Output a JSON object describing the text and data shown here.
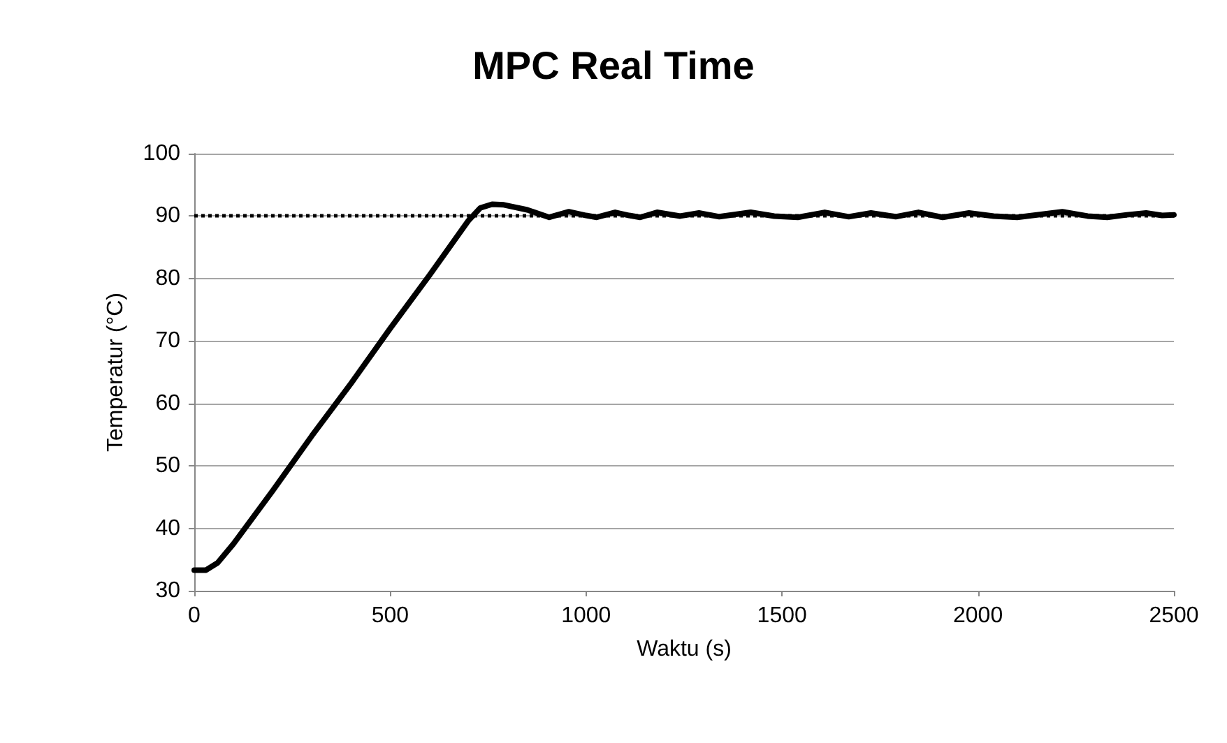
{
  "chart_data": {
    "type": "line",
    "title": "MPC Real Time",
    "xlabel": "Waktu (s)",
    "ylabel": "Temperatur (°C)",
    "xlim": [
      0,
      2500
    ],
    "xticks": [
      0,
      500,
      1000,
      1500,
      2000,
      2500
    ],
    "ylim": [
      30,
      100
    ],
    "yticks": [
      30,
      40,
      50,
      60,
      70,
      80,
      90,
      100
    ],
    "grid": "y",
    "marker": "none",
    "line_style": "solid",
    "ref_lines": [
      {
        "axis": "y",
        "value": 90,
        "color": "#000000",
        "line_style": "dotted"
      }
    ],
    "series": [
      {
        "color": "#000000",
        "x": [
          0,
          30,
          60,
          100,
          200,
          300,
          400,
          500,
          600,
          700,
          730,
          760,
          790,
          850,
          906,
          956,
          1000,
          1027,
          1074,
          1110,
          1138,
          1181,
          1240,
          1288,
          1340,
          1420,
          1480,
          1540,
          1609,
          1670,
          1727,
          1790,
          1848,
          1910,
          1977,
          2040,
          2100,
          2215,
          2280,
          2330,
          2380,
          2429,
          2470,
          2500
        ],
        "values": [
          33.3,
          33.3,
          34.5,
          37.5,
          46,
          54.8,
          63.2,
          72,
          80.5,
          89.3,
          91.3,
          91.9,
          91.8,
          91,
          89.8,
          90.7,
          90.1,
          89.8,
          90.6,
          90.1,
          89.8,
          90.6,
          90,
          90.5,
          89.9,
          90.6,
          90,
          89.8,
          90.6,
          89.9,
          90.5,
          89.9,
          90.6,
          89.8,
          90.5,
          90,
          89.8,
          90.7,
          90,
          89.8,
          90.2,
          90.5,
          90.1,
          90.2
        ]
      }
    ]
  }
}
